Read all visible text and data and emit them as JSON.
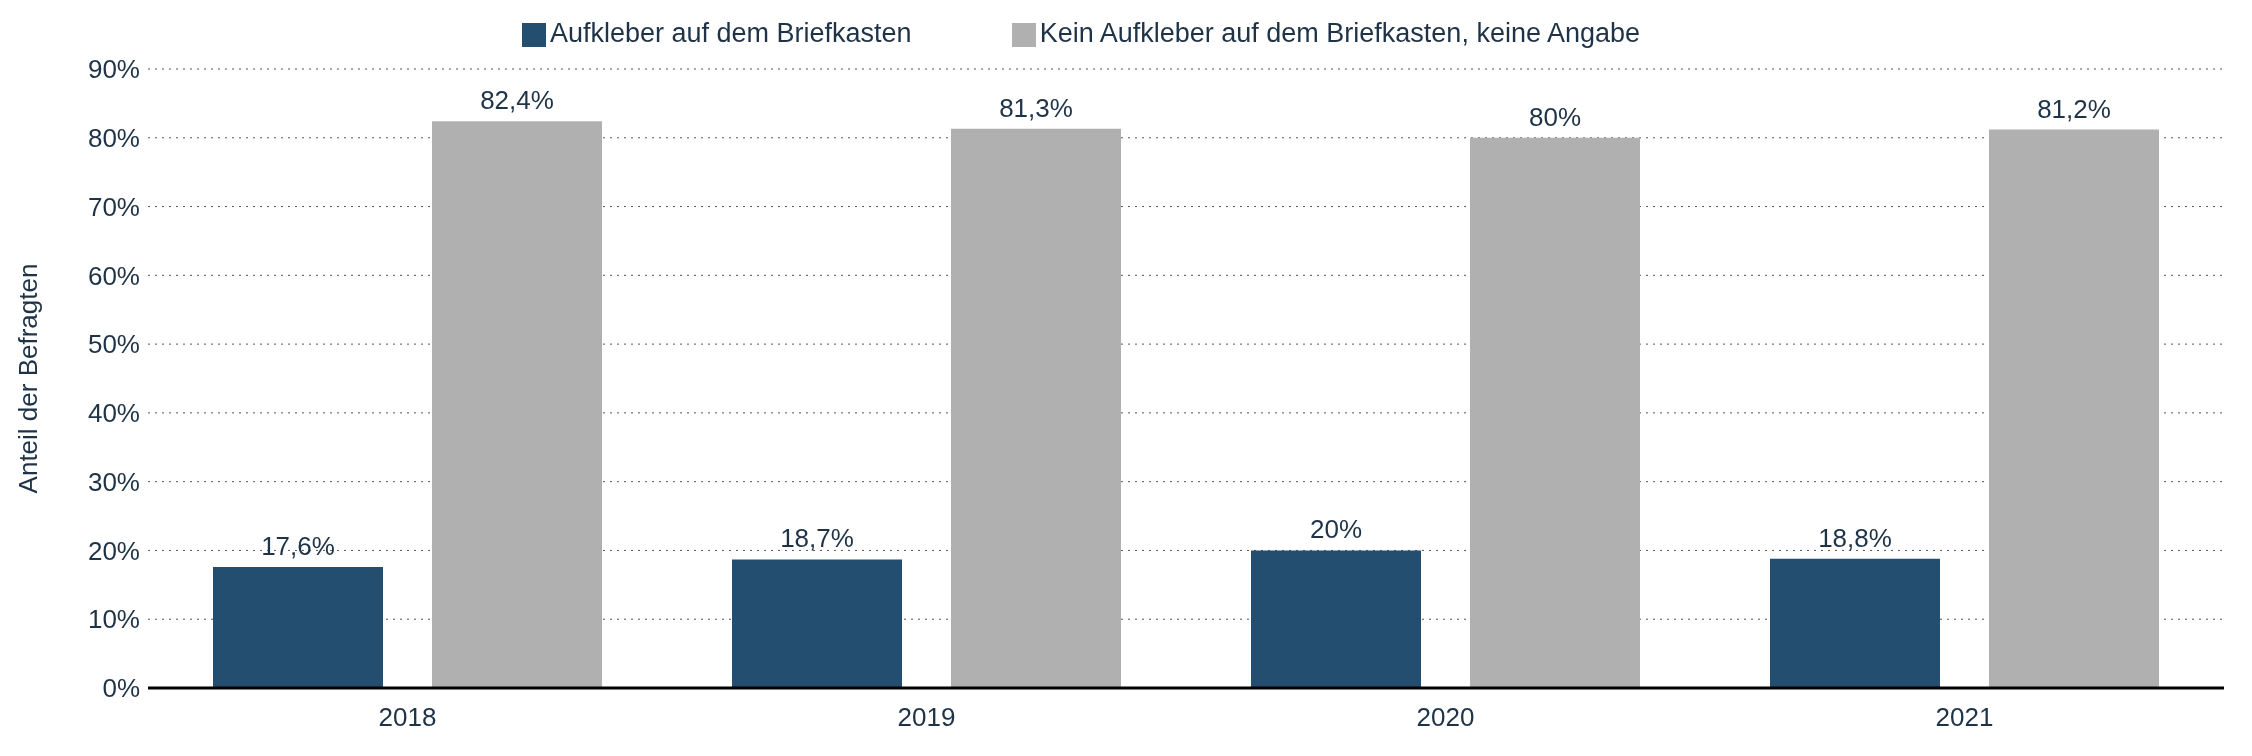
{
  "chart_data": {
    "type": "bar",
    "ylabel": "Anteil der Befragten",
    "categories": [
      "2018",
      "2019",
      "2020",
      "2021"
    ],
    "series": [
      {
        "name": "Aufkleber auf dem Briefkasten",
        "color": "#234e70",
        "values": [
          17.6,
          18.7,
          20,
          18.8
        ],
        "value_labels": [
          "17,6%",
          "18,7%",
          "20%",
          "18,8%"
        ]
      },
      {
        "name": "Kein Aufkleber auf dem Briefkasten, keine Angabe",
        "color": "#b0b0b0",
        "values": [
          82.4,
          81.3,
          80,
          81.2
        ],
        "value_labels": [
          "82,4%",
          "81,3%",
          "80%",
          "81,2%"
        ]
      }
    ],
    "ylim": [
      0,
      90
    ],
    "yticks": [
      {
        "value": 0,
        "label": "0%"
      },
      {
        "value": 10,
        "label": "10%"
      },
      {
        "value": 20,
        "label": "20%"
      },
      {
        "value": 30,
        "label": "30%"
      },
      {
        "value": 40,
        "label": "40%"
      },
      {
        "value": 50,
        "label": "50%"
      },
      {
        "value": 60,
        "label": "60%"
      },
      {
        "value": 70,
        "label": "70%"
      },
      {
        "value": 80,
        "label": "80%"
      },
      {
        "value": 90,
        "label": "90%"
      }
    ],
    "grid": "y",
    "legend": "top"
  }
}
